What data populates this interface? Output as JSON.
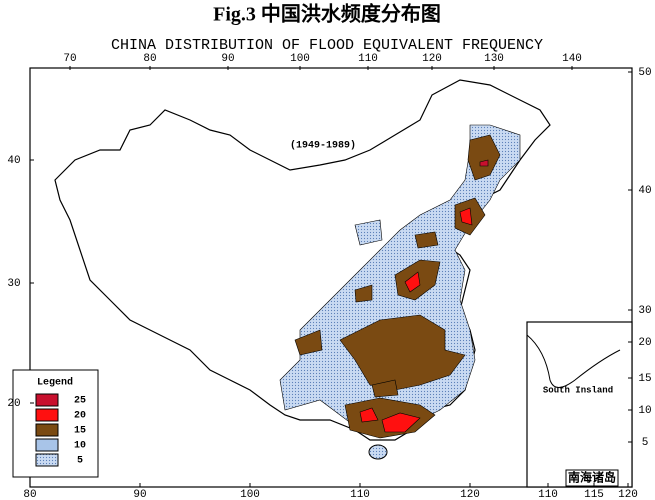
{
  "header": {
    "title": "Fig.3 中国洪水频度分布图",
    "subtitle": "CHINA DISTRIBUTION OF FLOOD EQUIVALENT FREQUENCY"
  },
  "map": {
    "period": "(1949-1989)"
  },
  "axes": {
    "top": [
      70,
      80,
      90,
      100,
      110,
      120,
      130,
      140
    ],
    "bottom": [
      80,
      90,
      100,
      110,
      120
    ],
    "left": [
      40,
      30,
      20
    ],
    "right": [
      50,
      40,
      30
    ]
  },
  "inset": {
    "label": "South Insland",
    "name": "南海诸岛",
    "right": [
      20,
      15,
      10,
      5
    ],
    "bottom": [
      110,
      115,
      120
    ]
  },
  "legend": {
    "title": "Legend",
    "levels": [
      25,
      20,
      15,
      10,
      5
    ]
  }
}
